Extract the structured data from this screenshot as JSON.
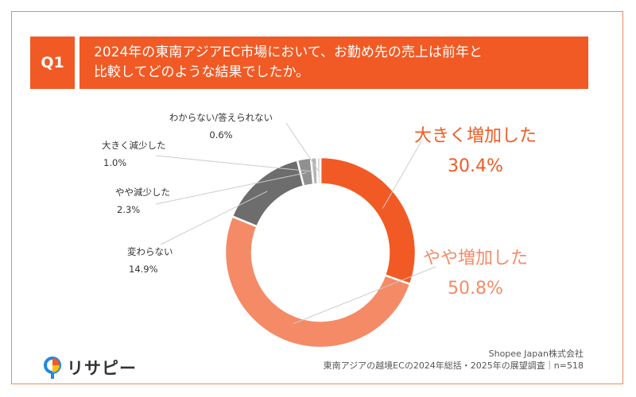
{
  "question": {
    "badge": "Q1",
    "text_line1": "2024年の東南アジアEC市場において、お勤め先の売上は前年と",
    "text_line2": "比較してどのような結果でしたか。"
  },
  "chart_data": {
    "type": "pie",
    "style": "donut",
    "unit": "%",
    "slices": [
      {
        "label": "大きく増加した",
        "value": 30.4,
        "display": "30.4%",
        "color": "#f15a24"
      },
      {
        "label": "やや増加した",
        "value": 50.8,
        "display": "50.8%",
        "color": "#f58a67"
      },
      {
        "label": "変わらない",
        "value": 14.9,
        "display": "14.9%",
        "color": "#6d6d6d"
      },
      {
        "label": "やや減少した",
        "value": 2.3,
        "display": "2.3%",
        "color": "#909090"
      },
      {
        "label": "大きく減少した",
        "value": 1.0,
        "display": "1.0%",
        "color": "#b4b4b4"
      },
      {
        "label": "わからない/答えられない",
        "value": 0.6,
        "display": "0.6%",
        "color": "#d4d4d4"
      }
    ]
  },
  "colors": {
    "accent": "#f15a24",
    "frame": "#f08a5d",
    "accent_light": "#f58a67"
  },
  "logo": {
    "text": "リサピー",
    "icon": "magnifier-logo-icon"
  },
  "footer": {
    "line1": "Shopee Japan株式会社",
    "line2": "東南アジアの越境ECの2024年総括・2025年の展望調査｜n=518"
  }
}
